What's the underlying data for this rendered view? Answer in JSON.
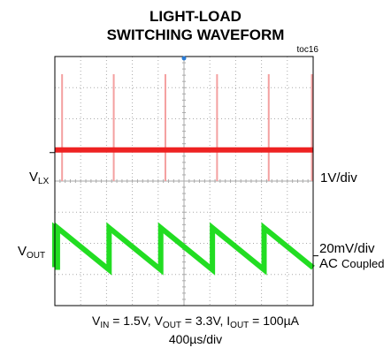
{
  "header": {
    "title_line1": "LIGHT-LOAD",
    "title_line2": "SWITCHING WAVEFORM",
    "figure_id": "toc16"
  },
  "labels": {
    "vlx_main": "V",
    "vlx_sub": "LX",
    "vout_main": "V",
    "vout_sub": "OUT",
    "ch1_scale": "1V/div",
    "ch2_scale": "20mV/div",
    "ch2_coupling_a": "AC ",
    "ch2_coupling_b": "Coupled"
  },
  "footer": {
    "vin_main": "V",
    "vin_sub": "IN",
    "vin_value": " = 1.5V, ",
    "vout_main": "V",
    "vout_sub": "OUT",
    "vout_value": " = 3.3V, ",
    "iout_main": "I",
    "iout_sub": "OUT",
    "iout_value": " = 100µA",
    "time_div": "400µs/div"
  },
  "colors": {
    "vlx_trace": "#ee2222",
    "vlx_spike": "#f4a0a0",
    "vout_trace": "#22dd22",
    "grid": "#aaaaaa",
    "frame": "#000000",
    "trigger": "#2a7bd4"
  },
  "chart_data": {
    "type": "line",
    "grid": true,
    "x_divisions": 10,
    "y_divisions": 8,
    "series": [
      {
        "name": "VLX",
        "baseline_div": 1.0,
        "spike_times_div": [
          0.28,
          2.28,
          4.28,
          6.28,
          8.28,
          9.95
        ]
      },
      {
        "name": "VOUT",
        "ramp_starts_div": [
          0.0,
          0.1,
          2.1,
          4.1,
          6.1,
          8.1
        ],
        "ramp_ends_div": [
          0.1,
          2.1,
          4.1,
          6.1,
          8.1,
          10.0
        ],
        "high_div": -1.5,
        "low_div": -2.85
      }
    ]
  }
}
